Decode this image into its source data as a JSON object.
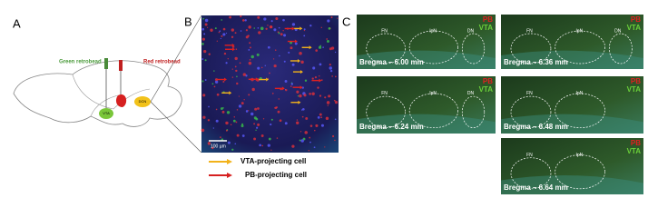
{
  "panel_a": {
    "label": "A",
    "green_label": "Green retrobead",
    "red_label": "Red retrobead",
    "vta": "VTA",
    "dcn": "DCN"
  },
  "panel_b": {
    "label": "B",
    "scale_bar": "100 µm"
  },
  "legend": [
    {
      "text": "VTA-projecting cell"
    },
    {
      "text": "PB-projecting cell"
    }
  ],
  "panel_c": {
    "label": "C",
    "images": [
      {
        "bregma": "Bregma – 6.00 mm",
        "pb": "PB",
        "vta": "VTA",
        "regions": [
          "FN",
          "IpN",
          "DN"
        ]
      },
      {
        "bregma": "Bregma – 6.24 mm",
        "pb": "PB",
        "vta": "VTA",
        "regions": [
          "FN",
          "IpN",
          "DN"
        ]
      },
      {
        "bregma": "Bregma – 6.36 mm",
        "pb": "PB",
        "vta": "VTA",
        "regions": [
          "FN",
          "IpN",
          "DN"
        ]
      },
      {
        "bregma": "Bregma – 6.48 mm",
        "pb": "PB",
        "vta": "VTA",
        "regions": [
          "FN",
          "IpN"
        ]
      },
      {
        "bregma": "Bregma – 6.64 mm",
        "pb": "PB",
        "vta": "VTA",
        "regions": [
          "FN",
          "IpN"
        ]
      }
    ]
  }
}
